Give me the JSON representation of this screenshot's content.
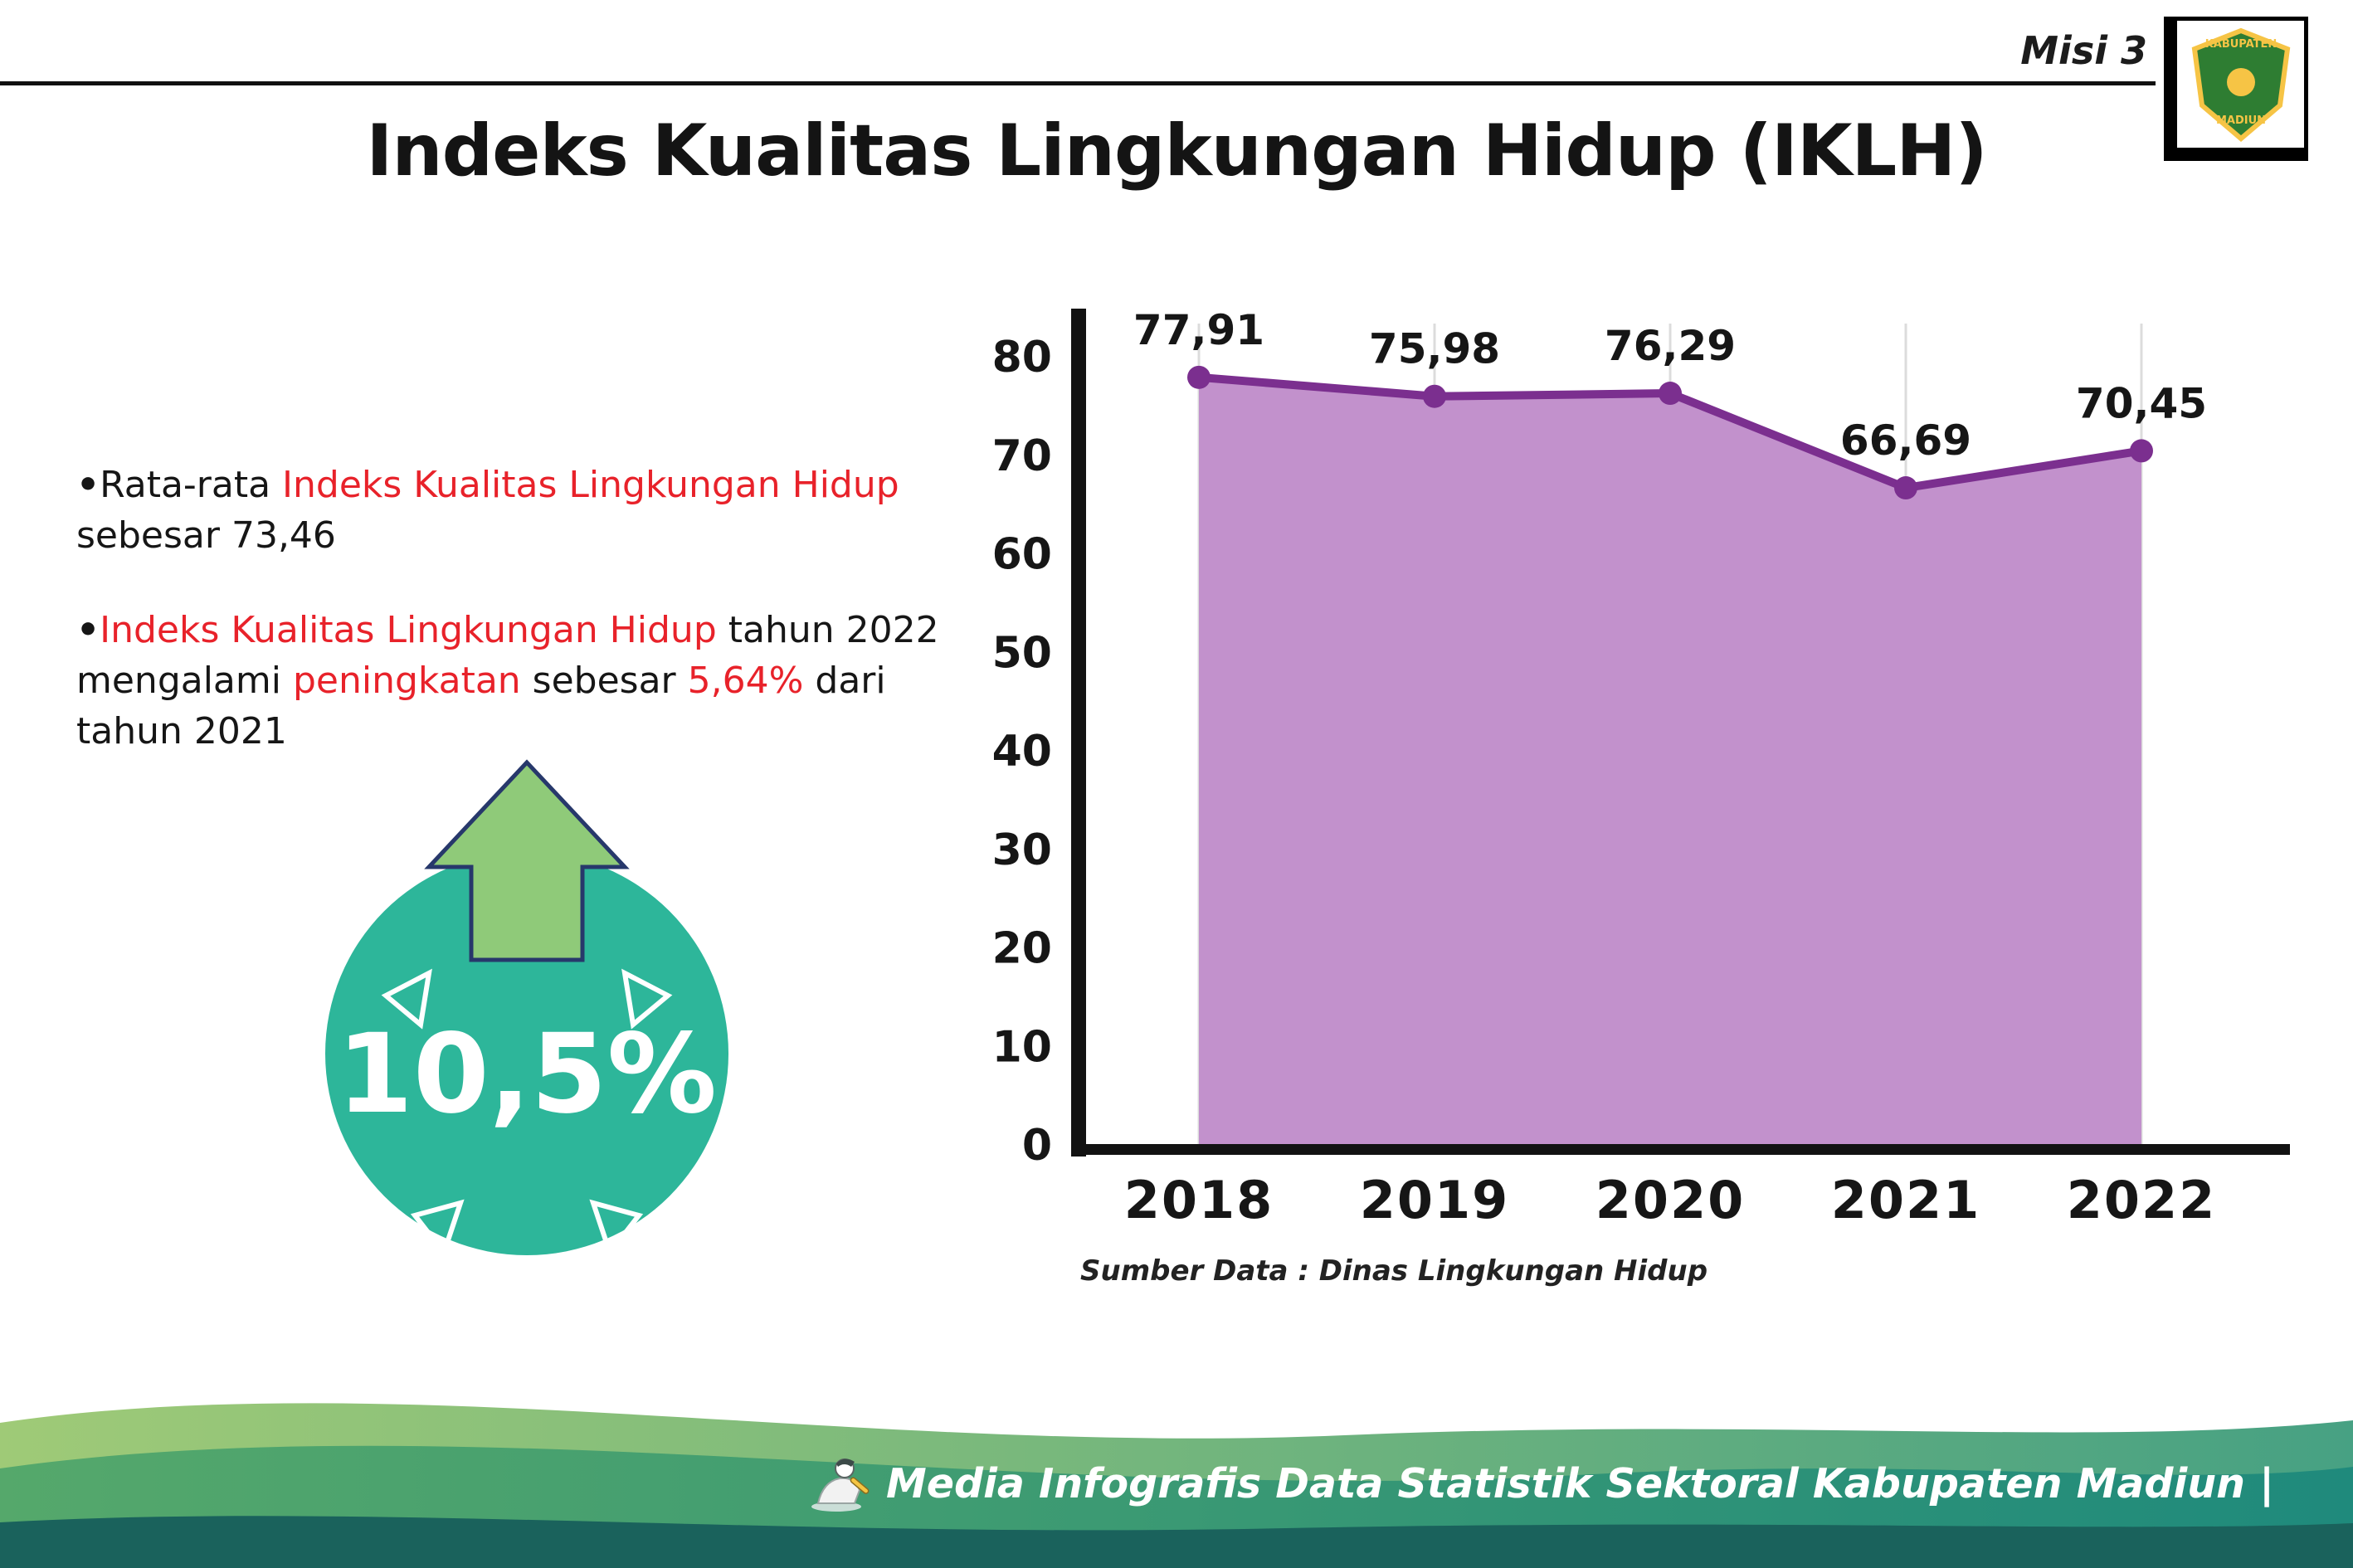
{
  "header": {
    "misi_label": "Misi 3",
    "title": "Indeks Kualitas Lingkungan Hidup (IKLH)",
    "logo": {
      "line1": "KABUPATEN",
      "line2": "MADIUN"
    }
  },
  "bullet_char": "•",
  "bullets": {
    "b1": {
      "s1": "Rata-rata ",
      "s2": "Indeks Kualitas Lingkungan Hidup",
      "s3": " sebesar 73,46"
    },
    "b2": {
      "s1": "Indeks Kualitas Lingkungan Hidup",
      "s2": " tahun 2022 mengalami ",
      "s3": "peningkatan",
      "s4": " sebesar ",
      "s5": "5,64%",
      "s6": " dari tahun 2021"
    }
  },
  "badge": {
    "value": "10,5%"
  },
  "chart_data": {
    "type": "area",
    "title": "Indeks Kualitas Lingkungan Hidup (IKLH)",
    "categories": [
      "2018",
      "2019",
      "2020",
      "2021",
      "2022"
    ],
    "values": [
      77.91,
      75.98,
      76.29,
      66.69,
      70.45
    ],
    "value_labels": [
      "77,91",
      "75,98",
      "76,29",
      "66,69",
      "70,45"
    ],
    "xlabel": "",
    "ylabel": "",
    "ylim": [
      0,
      80
    ],
    "yticks": [
      0,
      10,
      20,
      30,
      40,
      50,
      60,
      70,
      80
    ],
    "grid": "vertical-light",
    "legend": "none",
    "line_color": "#7b2f8f",
    "fill_color": "#c291cc",
    "source_note": "Sumber Data : Dinas Lingkungan Hidup"
  },
  "footer": {
    "credit": "Media Infografis Data Statistik Sektoral Kabupaten Madiun |"
  },
  "icons": {
    "footer_mascot": "writer-mascot-icon",
    "badge_arrow": "up-arrow-icon",
    "logo_crest": "kabupaten-madiun-crest"
  },
  "colors": {
    "accent_red": "#e8222a",
    "badge_teal": "#2db69a",
    "arrow_green": "#8fca79",
    "chart_line": "#7b2f8f",
    "chart_fill": "#c291cc",
    "footer_dark_teal": "#1a625c"
  }
}
